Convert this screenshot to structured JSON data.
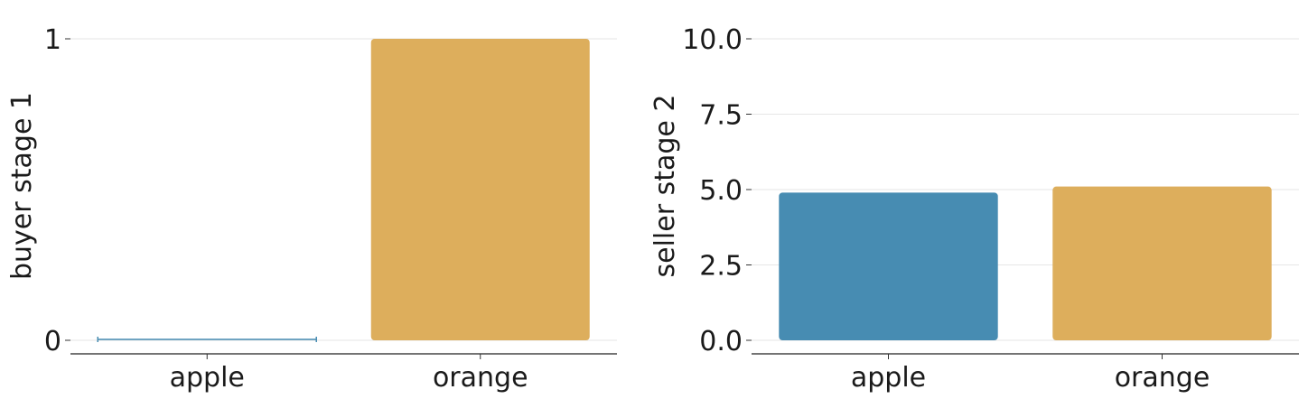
{
  "chart_data": [
    {
      "type": "bar",
      "categories": [
        "apple",
        "orange"
      ],
      "values": [
        0,
        1
      ],
      "colors": [
        "#478cb2",
        "#ddae5c"
      ],
      "ylabel": "buyer stage 1",
      "xlabel": "",
      "ylim": [
        0,
        1
      ],
      "yticks": [
        0,
        1
      ],
      "ytick_labels": [
        "0",
        "1"
      ],
      "grid": "horizontal"
    },
    {
      "type": "bar",
      "categories": [
        "apple",
        "orange"
      ],
      "values": [
        4.9,
        5.1
      ],
      "colors": [
        "#478cb2",
        "#ddae5c"
      ],
      "ylabel": "seller stage 2",
      "xlabel": "",
      "ylim": [
        0,
        10
      ],
      "yticks": [
        0,
        2.5,
        5,
        7.5,
        10
      ],
      "ytick_labels": [
        "0.0",
        "2.5",
        "5.0",
        "7.5",
        "10.0"
      ],
      "grid": "horizontal"
    }
  ]
}
